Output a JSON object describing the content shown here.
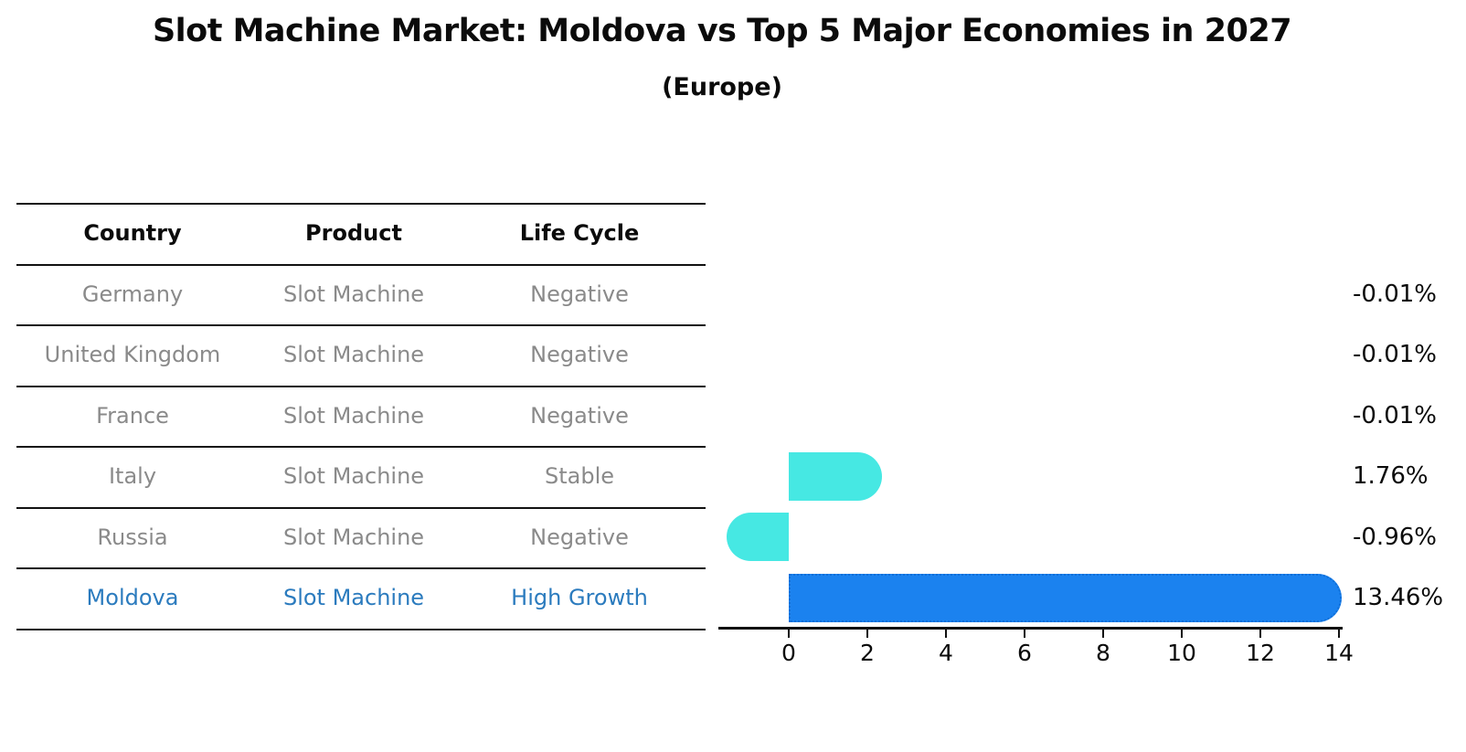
{
  "header": {
    "title": "Slot Machine Market: Moldova vs Top 5 Major Economies in 2027",
    "subtitle": "(Europe)"
  },
  "table": {
    "headers": [
      "Country",
      "Product",
      "Life Cycle"
    ],
    "rows": [
      {
        "country": "Germany",
        "product": "Slot Machine",
        "life_cycle": "Negative",
        "value_label": "-0.01%",
        "highlighted": false
      },
      {
        "country": "United Kingdom",
        "product": "Slot Machine",
        "life_cycle": "Negative",
        "value_label": "-0.01%",
        "highlighted": false
      },
      {
        "country": "France",
        "product": "Slot Machine",
        "life_cycle": "Negative",
        "value_label": "-0.01%",
        "highlighted": false
      },
      {
        "country": "Italy",
        "product": "Slot Machine",
        "life_cycle": "Stable",
        "value_label": "1.76%",
        "highlighted": false
      },
      {
        "country": "Russia",
        "product": "Slot Machine",
        "life_cycle": "Negative",
        "value_label": "-0.96%",
        "highlighted": false
      },
      {
        "country": "Moldova",
        "product": "Slot Machine",
        "life_cycle": "High Growth",
        "value_label": "13.46%",
        "highlighted": true
      }
    ]
  },
  "chart_data": {
    "type": "bar",
    "orientation": "horizontal",
    "title": "Slot Machine Market: Moldova vs Top 5 Major Economies in 2027 (Europe)",
    "categories": [
      "Germany",
      "United Kingdom",
      "France",
      "Italy",
      "Russia",
      "Moldova"
    ],
    "values": [
      -0.01,
      -0.01,
      -0.01,
      1.76,
      -0.96,
      13.46
    ],
    "value_labels": [
      "-0.01%",
      "-0.01%",
      "-0.01%",
      "1.76%",
      "-0.96%",
      "13.46%"
    ],
    "value_unit": "percent",
    "xticks": [
      0,
      2,
      4,
      6,
      8,
      10,
      12,
      14
    ],
    "xlim": [
      -1.8,
      14.1
    ],
    "grid": false,
    "legend": false,
    "highlight_index": 5,
    "colors": {
      "bar_default": "#46e8e3",
      "bar_highlight": "#1b82ef",
      "bar_highlight_border": "#0e6ed8",
      "highlight_text": "#2b7bbe",
      "row_text": "#8a8a8a",
      "axis": "#111111"
    }
  }
}
